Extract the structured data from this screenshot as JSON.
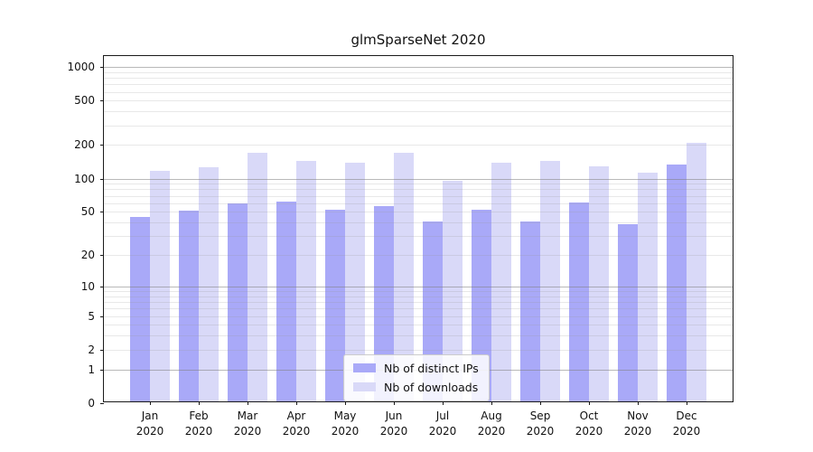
{
  "chart_data": {
    "type": "bar",
    "title": "glmSparseNet 2020",
    "categories": [
      "Jan 2020",
      "Feb 2020",
      "Mar 2020",
      "Apr 2020",
      "May 2020",
      "Jun 2020",
      "Jul 2020",
      "Aug 2020",
      "Sep 2020",
      "Oct 2020",
      "Nov 2020",
      "Dec 2020"
    ],
    "series": [
      {
        "name": "Nb of distinct IPs",
        "color": "#a9a9f8",
        "values": [
          43,
          49,
          57,
          60,
          50,
          54,
          39,
          50,
          39,
          58,
          37,
          128
        ]
      },
      {
        "name": "Nb of downloads",
        "color": "#d9d9f8",
        "values": [
          113,
          121,
          163,
          140,
          134,
          163,
          92,
          134,
          140,
          124,
          108,
          200
        ]
      }
    ],
    "xlabel": "",
    "ylabel": "",
    "yscale": "log1p",
    "ylim": [
      0,
      1250
    ],
    "yticks": [
      0,
      1,
      2,
      5,
      10,
      20,
      50,
      100,
      200,
      500,
      1000
    ],
    "major_grid_values": [
      1,
      10,
      100,
      1000
    ],
    "grid": "on",
    "legend_position": "lower center",
    "colors": {
      "distinct_ips_bar": "#a9a9f8",
      "downloads_bar": "#d9d9f8",
      "major_grid": "#b3b3b3",
      "minor_grid": "#e7e7e7",
      "spine": "#1a1a1a",
      "legend_border": "#cccccc"
    }
  }
}
